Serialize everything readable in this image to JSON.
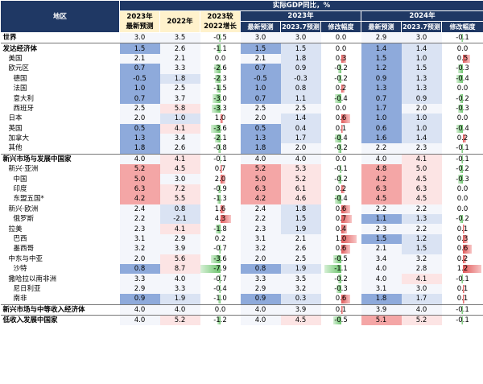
{
  "header": {
    "title": "实际GDP同比，%",
    "region_label": "地区",
    "group_2023": "2023年",
    "group_2024": "2024年",
    "col_a_line1": "2023年",
    "col_a_line2": "最新预测",
    "col_b": "2022年",
    "col_c_line1": "2023较",
    "col_c_line2": "2022增长",
    "col_latest": "最新预测",
    "col_prev": "2023.7预测",
    "col_rev": "修改幅度"
  },
  "rows": [
    {
      "region": "世界",
      "level": 0,
      "bold": true,
      "v": [
        "3.0",
        "3.5",
        "-0.5",
        "3.0",
        "3.0",
        "0.0",
        "2.9",
        "3.0",
        "-0.1"
      ],
      "d1": -0.5,
      "d2": 0.0,
      "d3": -0.1
    },
    {
      "region": "发达经济体",
      "level": 0,
      "bold": true,
      "v": [
        "1.5",
        "2.6",
        "-1.1",
        "1.5",
        "1.5",
        "0.0",
        "1.4",
        "1.4",
        "0.0"
      ],
      "d1": -1.1,
      "d2": 0.0,
      "d3": 0.0
    },
    {
      "region": "美国",
      "level": 1,
      "bold": false,
      "v": [
        "2.1",
        "2.1",
        "0.0",
        "2.1",
        "1.8",
        "0.3",
        "1.5",
        "1.0",
        "0.5"
      ],
      "d1": 0.0,
      "d2": 0.3,
      "d3": 0.5
    },
    {
      "region": "欧元区",
      "level": 1,
      "bold": false,
      "v": [
        "0.7",
        "3.3",
        "-2.6",
        "0.7",
        "0.9",
        "-0.2",
        "1.2",
        "1.5",
        "-0.3"
      ],
      "d1": -2.6,
      "d2": -0.2,
      "d3": -0.3
    },
    {
      "region": "德国",
      "level": 2,
      "bold": false,
      "v": [
        "-0.5",
        "1.8",
        "-2.3",
        "-0.5",
        "-0.3",
        "-0.2",
        "0.9",
        "1.3",
        "-0.4"
      ],
      "d1": -2.3,
      "d2": -0.2,
      "d3": -0.4
    },
    {
      "region": "法国",
      "level": 2,
      "bold": false,
      "v": [
        "1.0",
        "2.5",
        "-1.5",
        "1.0",
        "0.8",
        "0.2",
        "1.3",
        "1.3",
        "0.0"
      ],
      "d1": -1.5,
      "d2": 0.2,
      "d3": 0.0
    },
    {
      "region": "意大利",
      "level": 2,
      "bold": false,
      "v": [
        "0.7",
        "3.7",
        "-3.0",
        "0.7",
        "1.1",
        "-0.4",
        "0.7",
        "0.9",
        "-0.2"
      ],
      "d1": -3.0,
      "d2": -0.4,
      "d3": -0.2
    },
    {
      "region": "西班牙",
      "level": 2,
      "bold": false,
      "v": [
        "2.5",
        "5.8",
        "-3.3",
        "2.5",
        "2.5",
        "0.0",
        "1.7",
        "2.0",
        "-0.3"
      ],
      "d1": -3.3,
      "d2": 0.0,
      "d3": -0.3
    },
    {
      "region": "日本",
      "level": 1,
      "bold": false,
      "v": [
        "2.0",
        "1.0",
        "1.0",
        "2.0",
        "1.4",
        "0.6",
        "1.0",
        "1.0",
        "0.0"
      ],
      "d1": 1.0,
      "d2": 0.6,
      "d3": 0.0
    },
    {
      "region": "英国",
      "level": 1,
      "bold": false,
      "v": [
        "0.5",
        "4.1",
        "-3.6",
        "0.5",
        "0.4",
        "0.1",
        "0.6",
        "1.0",
        "-0.4"
      ],
      "d1": -3.6,
      "d2": 0.1,
      "d3": -0.4
    },
    {
      "region": "加拿大",
      "level": 1,
      "bold": false,
      "v": [
        "1.3",
        "3.4",
        "-2.1",
        "1.3",
        "1.7",
        "-0.4",
        "1.6",
        "1.4",
        "0.2"
      ],
      "d1": -2.1,
      "d2": -0.4,
      "d3": 0.2
    },
    {
      "region": "其他",
      "level": 1,
      "bold": false,
      "v": [
        "1.8",
        "2.6",
        "-0.8",
        "1.8",
        "2.0",
        "-0.2",
        "2.2",
        "2.3",
        "-0.1"
      ],
      "d1": -0.8,
      "d2": -0.2,
      "d3": -0.1
    },
    {
      "region": "新兴市场与发展中国家",
      "level": 0,
      "bold": true,
      "v": [
        "4.0",
        "4.1",
        "-0.1",
        "4.0",
        "4.0",
        "0.0",
        "4.0",
        "4.1",
        "-0.1"
      ],
      "d1": -0.1,
      "d2": 0.0,
      "d3": -0.1
    },
    {
      "region": "新兴·亚洲",
      "level": 1,
      "bold": false,
      "v": [
        "5.2",
        "4.5",
        "0.7",
        "5.2",
        "5.3",
        "-0.1",
        "4.8",
        "5.0",
        "-0.2"
      ],
      "d1": 0.7,
      "d2": -0.1,
      "d3": -0.2
    },
    {
      "region": "中国",
      "level": 2,
      "bold": false,
      "v": [
        "5.0",
        "3.0",
        "2.0",
        "5.0",
        "5.2",
        "-0.2",
        "4.2",
        "4.5",
        "-0.3"
      ],
      "d1": 2.0,
      "d2": -0.2,
      "d3": -0.3
    },
    {
      "region": "印度",
      "level": 2,
      "bold": false,
      "v": [
        "6.3",
        "7.2",
        "-0.9",
        "6.3",
        "6.1",
        "0.2",
        "6.3",
        "6.3",
        "0.0"
      ],
      "d1": -0.9,
      "d2": 0.2,
      "d3": 0.0
    },
    {
      "region": "东盟五国*",
      "level": 2,
      "bold": false,
      "v": [
        "4.2",
        "5.5",
        "-1.3",
        "4.2",
        "4.6",
        "-0.4",
        "4.5",
        "4.5",
        "0.0"
      ],
      "d1": -1.3,
      "d2": -0.4,
      "d3": 0.0
    },
    {
      "region": "新兴·欧洲",
      "level": 1,
      "bold": false,
      "v": [
        "2.4",
        "0.8",
        "1.6",
        "2.4",
        "1.8",
        "0.6",
        "2.2",
        "2.2",
        "0.0"
      ],
      "d1": 1.6,
      "d2": 0.6,
      "d3": 0.0
    },
    {
      "region": "俄罗斯",
      "level": 2,
      "bold": false,
      "v": [
        "2.2",
        "-2.1",
        "4.3",
        "2.2",
        "1.5",
        "0.7",
        "1.1",
        "1.3",
        "-0.2"
      ],
      "d1": 4.3,
      "d2": 0.7,
      "d3": -0.2
    },
    {
      "region": "拉美",
      "level": 1,
      "bold": false,
      "v": [
        "2.3",
        "4.1",
        "-1.8",
        "2.3",
        "1.9",
        "0.4",
        "2.3",
        "2.2",
        "0.1"
      ],
      "d1": -1.8,
      "d2": 0.4,
      "d3": 0.1
    },
    {
      "region": "巴西",
      "level": 2,
      "bold": false,
      "v": [
        "3.1",
        "2.9",
        "0.2",
        "3.1",
        "2.1",
        "1.0",
        "1.5",
        "1.2",
        "0.3"
      ],
      "d1": 0.2,
      "d2": 1.0,
      "d3": 0.3
    },
    {
      "region": "墨西哥",
      "level": 2,
      "bold": false,
      "v": [
        "3.2",
        "3.9",
        "-0.7",
        "3.2",
        "2.6",
        "0.6",
        "2.1",
        "1.5",
        "0.6"
      ],
      "d1": -0.7,
      "d2": 0.6,
      "d3": 0.6
    },
    {
      "region": "中东与中亚",
      "level": 1,
      "bold": false,
      "v": [
        "2.0",
        "5.6",
        "-3.6",
        "2.0",
        "2.5",
        "-0.5",
        "3.4",
        "3.2",
        "0.2"
      ],
      "d1": -3.6,
      "d2": -0.5,
      "d3": 0.2
    },
    {
      "region": "沙特",
      "level": 2,
      "bold": false,
      "v": [
        "0.8",
        "8.7",
        "-7.9",
        "0.8",
        "1.9",
        "-1.1",
        "4.0",
        "2.8",
        "1.2"
      ],
      "d1": -7.9,
      "d2": -1.1,
      "d3": 1.2
    },
    {
      "region": "撒哈拉以南非洲",
      "level": 1,
      "bold": false,
      "v": [
        "3.3",
        "4.0",
        "-0.7",
        "3.3",
        "3.5",
        "-0.2",
        "4.0",
        "4.1",
        "-0.1"
      ],
      "d1": -0.7,
      "d2": -0.2,
      "d3": -0.1
    },
    {
      "region": "尼日利亚",
      "level": 2,
      "bold": false,
      "v": [
        "2.9",
        "3.3",
        "-0.4",
        "2.9",
        "3.2",
        "-0.3",
        "3.1",
        "3.0",
        "0.1"
      ],
      "d1": -0.4,
      "d2": -0.3,
      "d3": 0.1
    },
    {
      "region": "南非",
      "level": 2,
      "bold": false,
      "v": [
        "0.9",
        "1.9",
        "-1.0",
        "0.9",
        "0.3",
        "0.6",
        "1.8",
        "1.7",
        "0.1"
      ],
      "d1": -1.0,
      "d2": 0.6,
      "d3": 0.1
    },
    {
      "region": "新兴市场与中等收入经济体",
      "level": 0,
      "bold": true,
      "v": [
        "4.0",
        "4.0",
        "0.0",
        "4.0",
        "3.9",
        "0.1",
        "3.9",
        "4.0",
        "-0.1"
      ],
      "d1": 0.0,
      "d2": 0.1,
      "d3": -0.1
    },
    {
      "region": "低收入发展中国家",
      "level": 0,
      "bold": true,
      "v": [
        "4.0",
        "5.2",
        "-1.2",
        "4.0",
        "4.5",
        "-0.5",
        "5.1",
        "5.2",
        "-0.1"
      ],
      "d1": -1.2,
      "d2": -0.5,
      "d3": -0.1
    }
  ],
  "colors": {
    "header_bg": "#1f3864",
    "header_highlight": "#fff2cc",
    "blue_dark": "#8eaadb",
    "blue_light": "#dae3f3",
    "red_dark": "#f4a6a6",
    "red_light": "#fce4e4",
    "bar_pos": "#e05a5a",
    "bar_neg": "#6cc36c"
  }
}
